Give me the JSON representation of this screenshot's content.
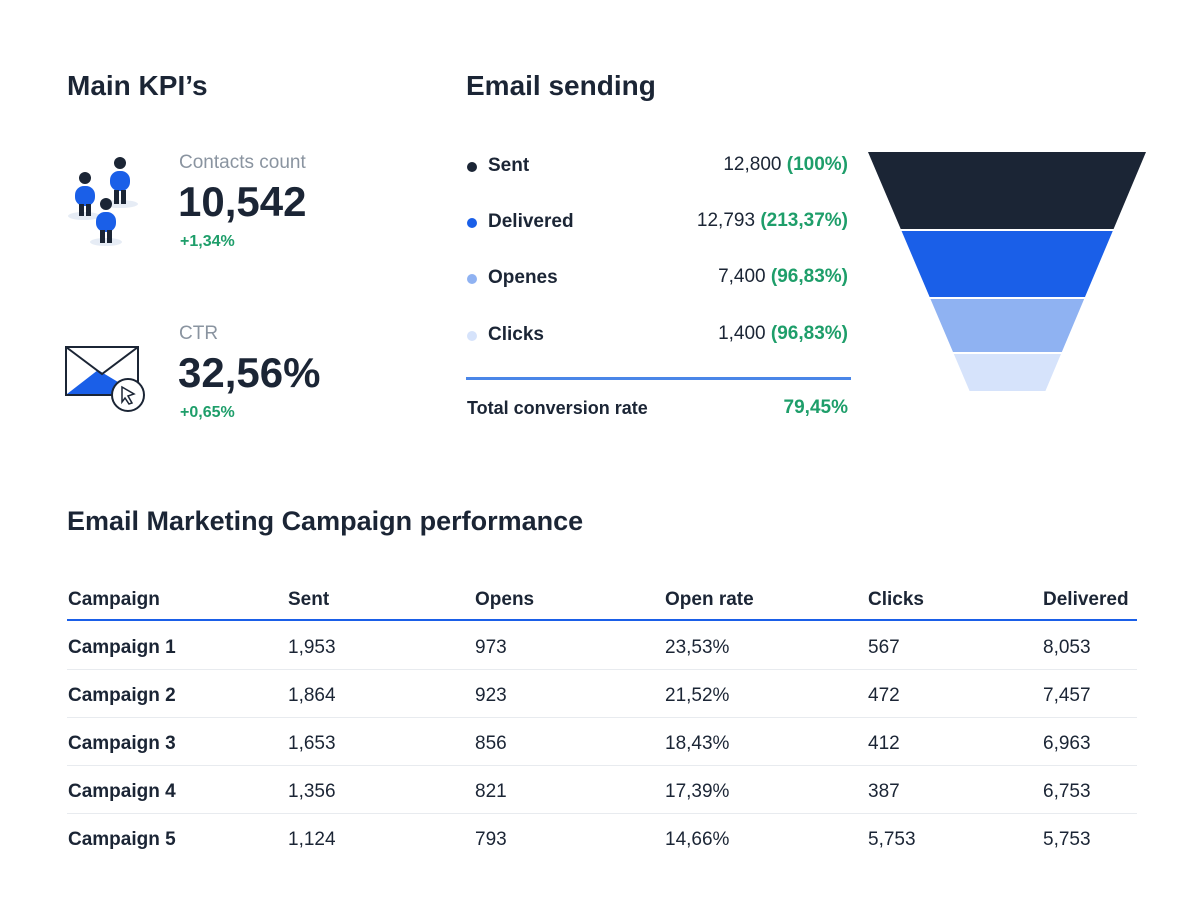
{
  "kpi": {
    "title": "Main KPI’s",
    "items": [
      {
        "label": "Contacts count",
        "value": "10,542",
        "change": "+1,34%"
      },
      {
        "label": "CTR",
        "value": "32,56%",
        "change": "+0,65%"
      }
    ]
  },
  "email": {
    "title": "Email sending",
    "rows": [
      {
        "label": "Sent",
        "value": "12,800",
        "rate": "(100%)",
        "color": "#1b2535"
      },
      {
        "label": "Delivered",
        "value": "12,793",
        "rate": "(213,37%)",
        "color": "#1a5fe8"
      },
      {
        "label": "Openes",
        "value": "7,400",
        "rate": "(96,83%)",
        "color": "#8fb2f2"
      },
      {
        "label": "Clicks",
        "value": "1,400",
        "rate": "(96,83%)",
        "color": "#d6e3fb"
      }
    ],
    "total": {
      "label": "Total conversion rate",
      "value": "79,45%"
    }
  },
  "table": {
    "title": "Email Marketing Campaign performance",
    "columns": [
      "Campaign",
      "Sent",
      "Opens",
      "Open rate",
      "Clicks",
      "Delivered"
    ],
    "rows": [
      [
        "Campaign 1",
        "1,953",
        "973",
        "23,53%",
        "567",
        "8,053"
      ],
      [
        "Campaign 2",
        "1,864",
        "923",
        "21,52%",
        "472",
        "7,457"
      ],
      [
        "Campaign 3",
        "1,653",
        "856",
        "18,43%",
        "412",
        "6,963"
      ],
      [
        "Campaign 4",
        "1,356",
        "821",
        "17,39%",
        "387",
        "6,753"
      ],
      [
        "Campaign 5",
        "1,124",
        "793",
        "14,66%",
        "5,753",
        "5,753"
      ]
    ]
  }
}
